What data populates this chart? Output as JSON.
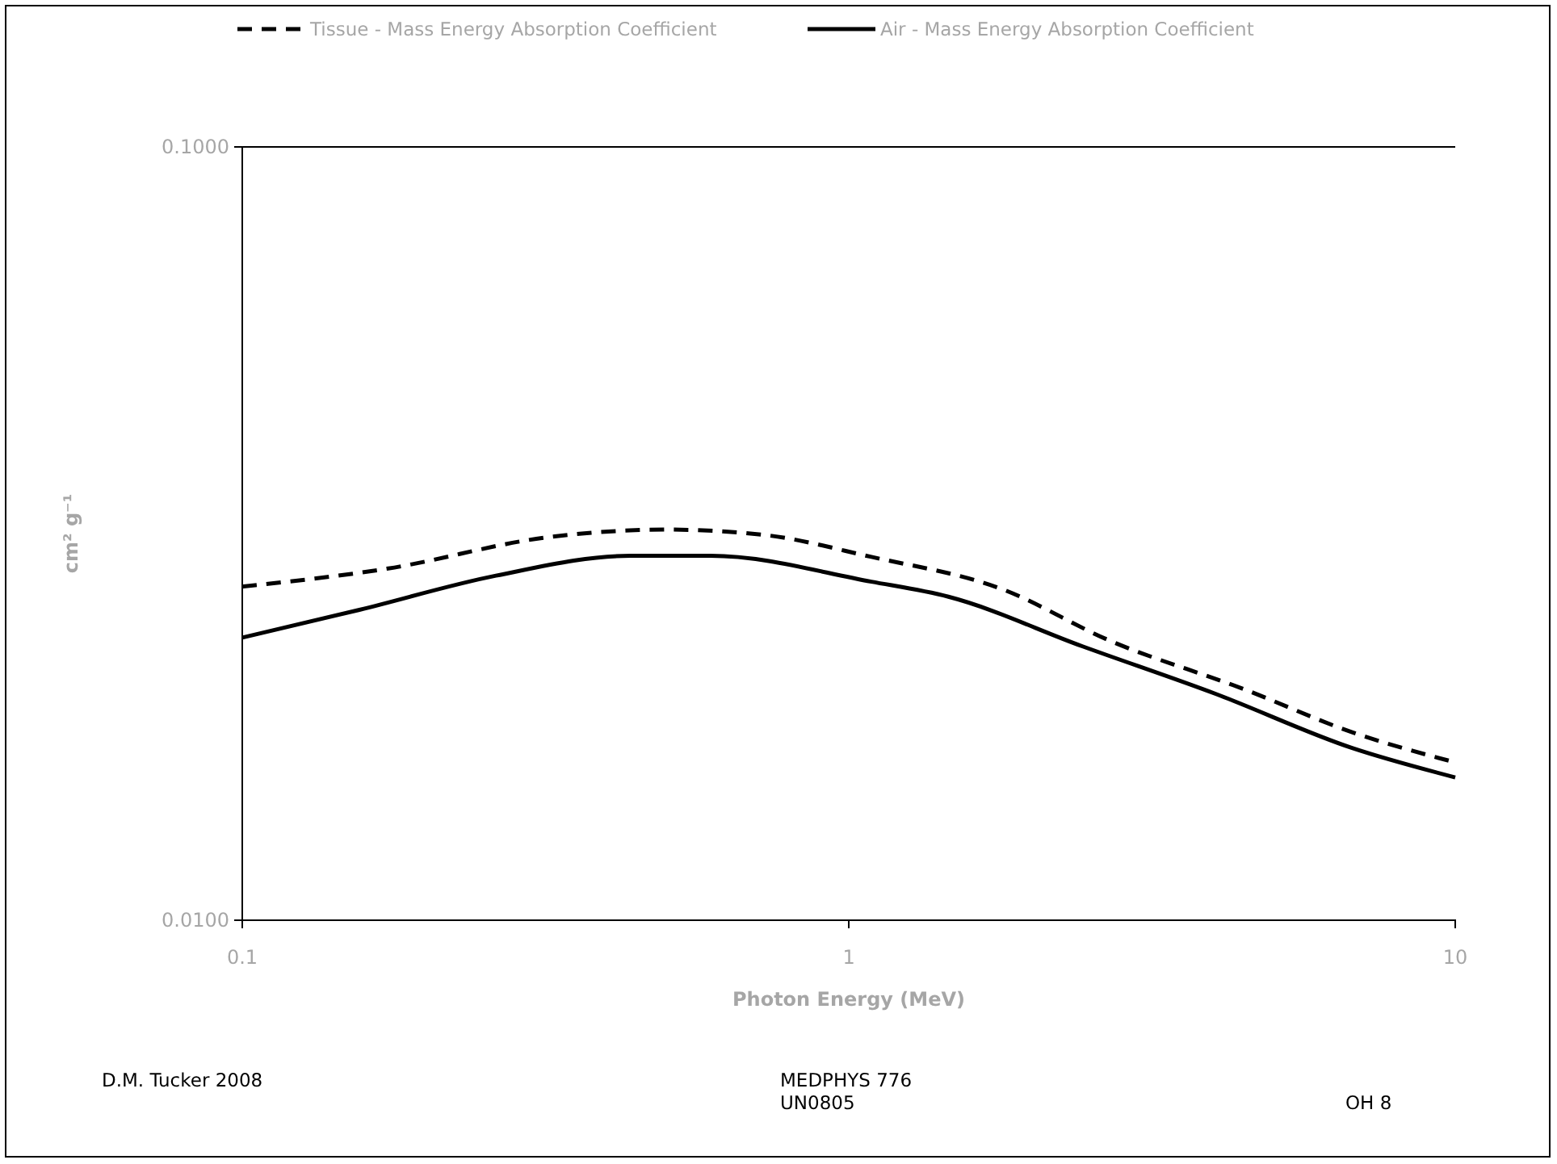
{
  "chart_data": {
    "type": "line",
    "xlabel": "Photon Energy (MeV)",
    "ylabel": "cm² g⁻¹",
    "log": "xy",
    "xlim": [
      0.1,
      10
    ],
    "xticks": [
      0.1,
      1,
      10
    ],
    "ylim": [
      0.01,
      0.1
    ],
    "yticks": [
      {
        "value": 0.01,
        "label": "0.0100"
      },
      {
        "value": 0.1,
        "label": "0.1000"
      }
    ],
    "legend": "top",
    "marker": "none",
    "series": [
      {
        "name": "Tissue - Mass Energy Absorption Coefficient",
        "color": "#000000",
        "line_style": "dashed",
        "x": [
          0.1,
          0.174,
          0.321,
          0.501,
          0.724,
          1.09,
          1.79,
          2.69,
          4.48,
          6.76,
          10
        ],
        "values": [
          0.027,
          0.0285,
          0.0313,
          0.032,
          0.0315,
          0.0295,
          0.0268,
          0.023,
          0.0199,
          0.0175,
          0.016
        ]
      },
      {
        "name": "Air - Mass Energy Absorption Coefficient",
        "color": "#000000",
        "line_style": "solid",
        "x": [
          0.1,
          0.156,
          0.262,
          0.436,
          0.592,
          1.09,
          1.46,
          2.43,
          4.04,
          6.76,
          10
        ],
        "values": [
          0.0232,
          0.0252,
          0.0279,
          0.0296,
          0.0296,
          0.0274,
          0.0262,
          0.0226,
          0.0196,
          0.0167,
          0.0153
        ]
      }
    ],
    "annotations": [
      "D.M. Tucker 2008",
      "MEDPHYS 776",
      "UN0805",
      "OH 8"
    ]
  }
}
